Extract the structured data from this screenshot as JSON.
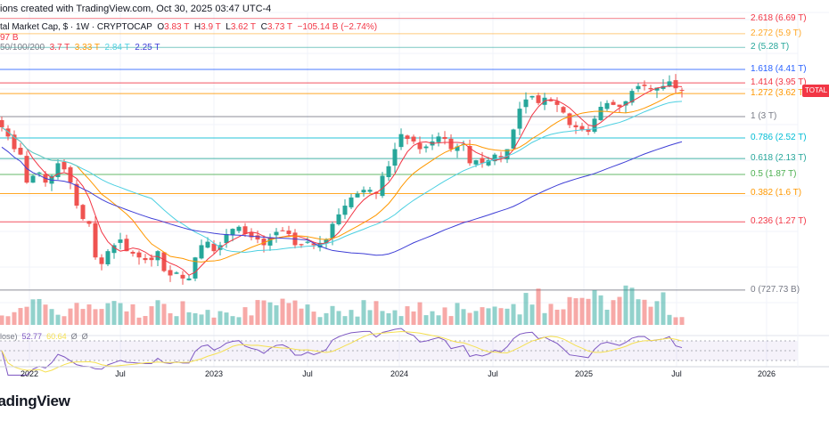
{
  "header": {
    "caption": "ions created with TradingView.com, Oct 30, 2025 03:47 UTC-4",
    "symbol": "tal Market Cap, $ · 1W · CRYPTOCAP",
    "o_label": "O",
    "o": "3.83 T",
    "h_label": "H",
    "h": "3.9 T",
    "l_label": "L",
    "l": "3.62 T",
    "c_label": "C",
    "c": "3.73 T",
    "change": "−105.14 B (−2.74%)",
    "volume": "97 B",
    "ma_label": "50/100/200",
    "ma_values": [
      "3.7 T",
      "3.33 T",
      "2.84 T",
      "2.25 T"
    ],
    "rsi_label": "lose)",
    "rsi_value": "52.77",
    "rsi_ma_value": "60.64",
    "rsi_extra": [
      "Ø",
      "Ø"
    ]
  },
  "price_tag": "TOTAL",
  "logo": "TradingView",
  "colors": {
    "up": "#26a69a",
    "down": "#ef5350",
    "ma": [
      "#f23645",
      "#ff9800",
      "#4dd0e1",
      "#3f3fd6"
    ],
    "rsi": "#7e57c2",
    "rsi_ma": "#f5e050"
  },
  "chart_data": {
    "type": "candlestick",
    "title": "",
    "scale": "log",
    "ylim_T": [
      0.6,
      7.2
    ],
    "grid": true,
    "x_ticks": [
      "2022",
      "Jul",
      "2023",
      "Jul",
      "2024",
      "Jul",
      "2025",
      "Jul",
      "2026"
    ],
    "closes_T": [
      2.75,
      2.55,
      2.3,
      2.2,
      1.75,
      1.85,
      1.9,
      1.75,
      1.85,
      2.05,
      1.95,
      1.75,
      1.45,
      1.3,
      1.25,
      0.95,
      0.9,
      1.0,
      1.05,
      1.1,
      1.0,
      0.98,
      0.95,
      0.93,
      0.93,
      1.0,
      0.85,
      0.82,
      0.84,
      0.8,
      0.8,
      0.95,
      1.05,
      1.08,
      1.0,
      1.05,
      1.15,
      1.2,
      1.22,
      1.15,
      1.12,
      1.1,
      1.05,
      1.12,
      1.17,
      1.18,
      1.15,
      1.05,
      1.05,
      1.08,
      1.05,
      1.07,
      1.1,
      1.25,
      1.35,
      1.45,
      1.55,
      1.6,
      1.65,
      1.65,
      1.6,
      1.85,
      2.0,
      2.3,
      2.6,
      2.5,
      2.45,
      2.3,
      2.35,
      2.45,
      2.55,
      2.5,
      2.3,
      2.35,
      2.4,
      2.05,
      2.1,
      2.05,
      2.1,
      2.2,
      2.15,
      2.3,
      2.7,
      3.2,
      3.45,
      3.55,
      3.35,
      3.5,
      3.4,
      3.3,
      3.1,
      2.8,
      2.75,
      2.7,
      2.65,
      2.95,
      3.25,
      3.35,
      3.3,
      3.25,
      3.4,
      3.7,
      3.85,
      3.85,
      3.75,
      3.8,
      3.85,
      4.0,
      3.78,
      3.73
    ],
    "fib_levels": [
      {
        "label": "2.618 (6.69 T)",
        "value": 6.69,
        "color": "#f23645"
      },
      {
        "label": "2.272 (5.9 T)",
        "value": 5.9,
        "color": "#ffa726"
      },
      {
        "label": "2 (5.28 T)",
        "value": 5.28,
        "color": "#26a69a"
      },
      {
        "label": "1.618 (4.41 T)",
        "value": 4.41,
        "color": "#2962ff"
      },
      {
        "label": "1.414 (3.95 T)",
        "value": 3.95,
        "color": "#f23645"
      },
      {
        "label": "1.272 (3.62 T)",
        "value": 3.62,
        "color": "#ff9800"
      },
      {
        "label": "1 (3 T)",
        "value": 3.0,
        "color": "#787b86"
      },
      {
        "label": "0.786 (2.52 T)",
        "value": 2.52,
        "color": "#00bcd4"
      },
      {
        "label": "0.618 (2.13 T)",
        "value": 2.13,
        "color": "#26a69a"
      },
      {
        "label": "0.5 (1.87 T)",
        "value": 1.87,
        "color": "#4caf50"
      },
      {
        "label": "0.382 (1.6 T)",
        "value": 1.6,
        "color": "#ff9800"
      },
      {
        "label": "0.236 (1.27 T)",
        "value": 1.27,
        "color": "#f23645"
      },
      {
        "label": "0 (727.73 B)",
        "value": 0.72773,
        "color": "#787b86"
      }
    ]
  }
}
